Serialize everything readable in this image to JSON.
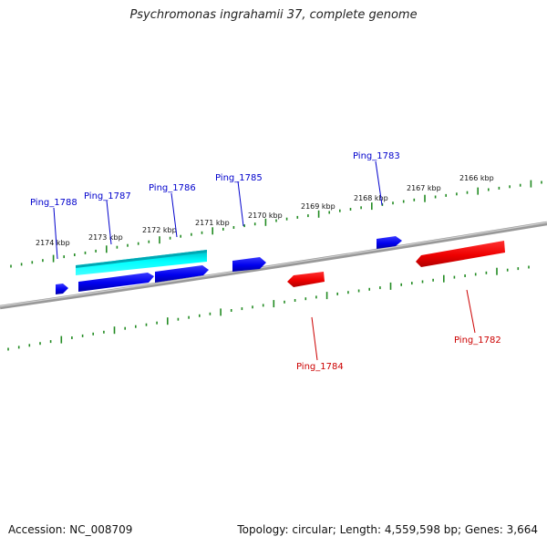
{
  "title": "Psychromonas ingrahamii 37, complete genome",
  "footer": {
    "accession": "Accession: NC_008709",
    "summary": "Topology: circular; Length: 4,559,598 bp; Genes: 3,664"
  },
  "colors": {
    "forward_gene": "#0000ee",
    "reverse_gene": "#ee0000",
    "highlight": "#00e5ee",
    "tick": "#228b22",
    "backbone": "#888888"
  },
  "scale_labels": [
    "2174 kbp",
    "2173 kbp",
    "2172 kbp",
    "2171 kbp",
    "2170 kbp",
    "2169 kbp",
    "2168 kbp",
    "2167 kbp",
    "2166 kbp"
  ],
  "gene_labels": [
    {
      "name": "Ping_1788",
      "strand": "forward"
    },
    {
      "name": "Ping_1787",
      "strand": "forward"
    },
    {
      "name": "Ping_1786",
      "strand": "forward"
    },
    {
      "name": "Ping_1785",
      "strand": "forward"
    },
    {
      "name": "Ping_1783",
      "strand": "forward"
    },
    {
      "name": "Ping_1784",
      "strand": "reverse"
    },
    {
      "name": "Ping_1782",
      "strand": "reverse"
    }
  ]
}
